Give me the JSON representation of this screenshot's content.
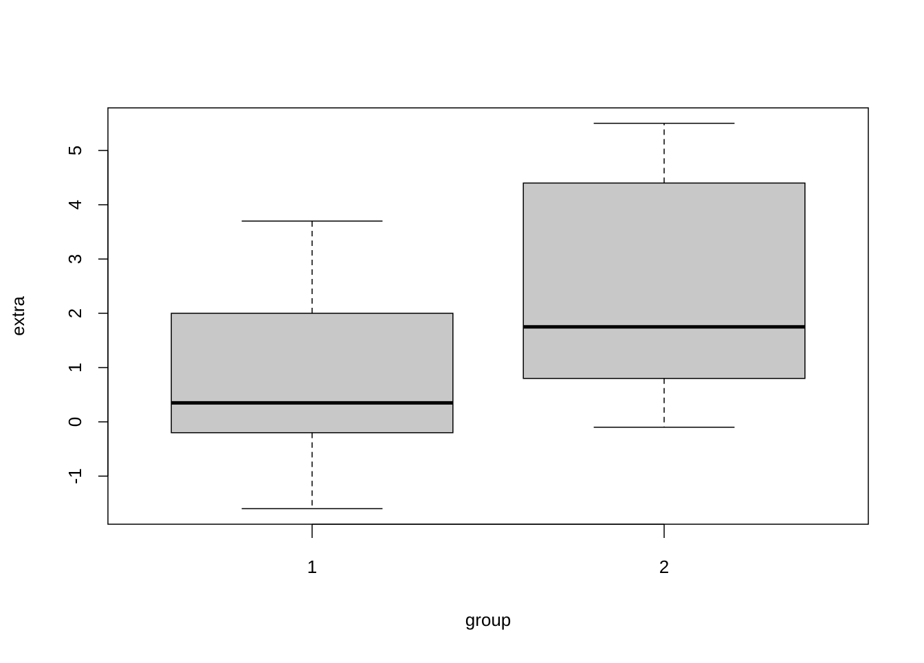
{
  "chart_data": {
    "type": "boxplot",
    "title": "",
    "xlabel": "group",
    "ylabel": "extra",
    "categories": [
      "1",
      "2"
    ],
    "boxes": [
      {
        "category": "1",
        "min": -1.6,
        "q1": -0.2,
        "median": 0.35,
        "q3": 2.0,
        "max": 3.7
      },
      {
        "category": "2",
        "min": -0.1,
        "q1": 0.8,
        "median": 1.75,
        "q3": 4.4,
        "max": 5.5
      }
    ],
    "yticks": [
      -1,
      0,
      1,
      2,
      3,
      4,
      5
    ],
    "ytick_labels": [
      "-1",
      "0",
      "1",
      "2",
      "3",
      "4",
      "5"
    ],
    "ylim": [
      -1.886,
      5.785
    ],
    "xlim": [
      0.42,
      2.58
    ],
    "grid": false,
    "box_fill": "#c8c8c8",
    "line_color": "#000000"
  }
}
